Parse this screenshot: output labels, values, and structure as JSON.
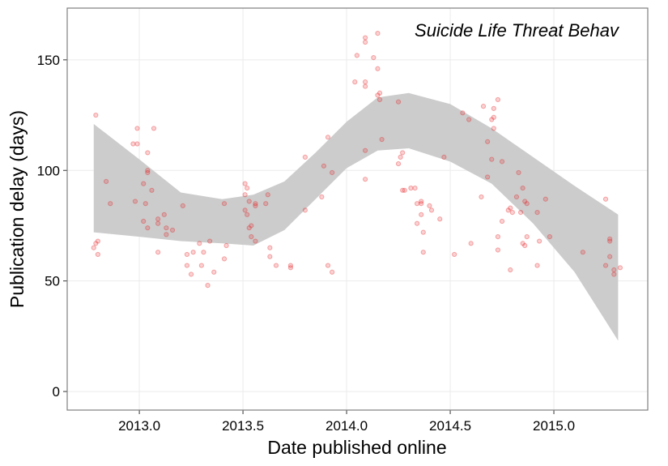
{
  "chart_data": {
    "type": "scatter",
    "title": "Suicide Life Threat Behav",
    "x_label": "Date published online",
    "y_label": "Publication delay (days)",
    "xlim": [
      2012.652,
      2015.453
    ],
    "ylim": [
      -8.4,
      173.4
    ],
    "xticks": [
      {
        "value": 2013,
        "label": "2013.0"
      },
      {
        "value": 2013.5,
        "label": "2013.5"
      },
      {
        "value": 2014,
        "label": "2014.0"
      },
      {
        "value": 2014.5,
        "label": "2014.5"
      },
      {
        "value": 2015,
        "label": "2015.0"
      }
    ],
    "yticks": [
      0,
      50,
      100,
      150
    ],
    "grid": true,
    "series": [
      {
        "color": "#e41a1c",
        "x": [
          2012.79,
          2012.78,
          2012.79,
          2012.8,
          2012.8,
          2012.84,
          2012.86,
          2012.97,
          2012.99,
          2012.99,
          2012.98,
          2013.02,
          2013.02,
          2013.04,
          2013.04,
          2013.04,
          2013.03,
          2013.04,
          2013.06,
          2013.07,
          2013.09,
          2013.09,
          2013.09,
          2013.12,
          2013.13,
          2013.13,
          2013.16,
          2013.21,
          2013.23,
          2013.23,
          2013.25,
          2013.26,
          2013.29,
          2013.3,
          2013.31,
          2013.33,
          2013.34,
          2013.36,
          2013.41,
          2013.41,
          2013.42,
          2013.51,
          2013.51,
          2013.51,
          2013.52,
          2013.52,
          2013.53,
          2013.53,
          2013.54,
          2013.54,
          2013.56,
          2013.56,
          2013.56,
          2013.61,
          2013.62,
          2013.63,
          2013.63,
          2013.66,
          2013.73,
          2013.73,
          2013.8,
          2013.8,
          2013.88,
          2013.89,
          2013.91,
          2013.91,
          2013.93,
          2013.93,
          2014.04,
          2014.05,
          2014.09,
          2014.09,
          2014.09,
          2014.09,
          2014.09,
          2014.09,
          2014.13,
          2014.15,
          2014.15,
          2014.15,
          2014.16,
          2014.16,
          2014.17,
          2014.25,
          2014.25,
          2014.26,
          2014.27,
          2014.27,
          2014.28,
          2014.31,
          2014.33,
          2014.34,
          2014.34,
          2014.36,
          2014.36,
          2014.36,
          2014.37,
          2014.37,
          2014.4,
          2014.41,
          2014.45,
          2014.47,
          2014.52,
          2014.56,
          2014.59,
          2014.6,
          2014.65,
          2014.66,
          2014.68,
          2014.68,
          2014.7,
          2014.7,
          2014.71,
          2014.71,
          2014.71,
          2014.73,
          2014.73,
          2014.73,
          2014.75,
          2014.75,
          2014.78,
          2014.79,
          2014.79,
          2014.8,
          2014.82,
          2014.83,
          2014.84,
          2014.85,
          2014.85,
          2014.86,
          2014.86,
          2014.87,
          2014.87,
          2014.92,
          2014.93,
          2014.92,
          2014.96,
          2014.98,
          2015.14,
          2015.25,
          2015.25,
          2015.27,
          2015.27,
          2015.27,
          2015.29,
          2015.29,
          2015.32
        ],
        "values": [
          125,
          65,
          67,
          68,
          62,
          95,
          85,
          112,
          112,
          119,
          86,
          94,
          77,
          108,
          100,
          99,
          85,
          74,
          91,
          119,
          78,
          76,
          63,
          80,
          74,
          71,
          73,
          84,
          62,
          57,
          53,
          63,
          67,
          57,
          63,
          48,
          68,
          54,
          85,
          60,
          66,
          89,
          94,
          82,
          80,
          92,
          86,
          74,
          70,
          75,
          85,
          84,
          68,
          85,
          89,
          65,
          61,
          57,
          57,
          56,
          106,
          82,
          88,
          102,
          115,
          57,
          54,
          99,
          140,
          152,
          160,
          158,
          140,
          138,
          109,
          96,
          151,
          162,
          146,
          134,
          132,
          135,
          114,
          131,
          103,
          106,
          108,
          91,
          91,
          92,
          92,
          85,
          76,
          86,
          85,
          80,
          72,
          63,
          84,
          82,
          78,
          106,
          62,
          126,
          123,
          67,
          88,
          129,
          97,
          113,
          123,
          105,
          128,
          119,
          124,
          132,
          70,
          64,
          104,
          77,
          82,
          83,
          55,
          81,
          88,
          99,
          81,
          92,
          67,
          86,
          66,
          70,
          85,
          81,
          68,
          57,
          87,
          70,
          63,
          57,
          87,
          69,
          68,
          61,
          55,
          53,
          56
        ]
      }
    ],
    "band": {
      "color": "#cccccc",
      "x": [
        2012.78,
        2013.0,
        2013.2,
        2013.4,
        2013.55,
        2013.7,
        2013.85,
        2014.0,
        2014.15,
        2014.3,
        2014.5,
        2014.7,
        2014.9,
        2015.1,
        2015.31
      ],
      "upper": [
        121,
        105,
        90,
        87,
        89,
        95,
        108,
        122,
        133,
        135,
        130,
        119,
        106,
        93,
        80
      ],
      "lower": [
        72,
        70,
        68,
        67,
        66,
        73,
        87,
        101,
        109,
        110,
        104,
        94,
        76,
        54,
        23
      ]
    }
  }
}
